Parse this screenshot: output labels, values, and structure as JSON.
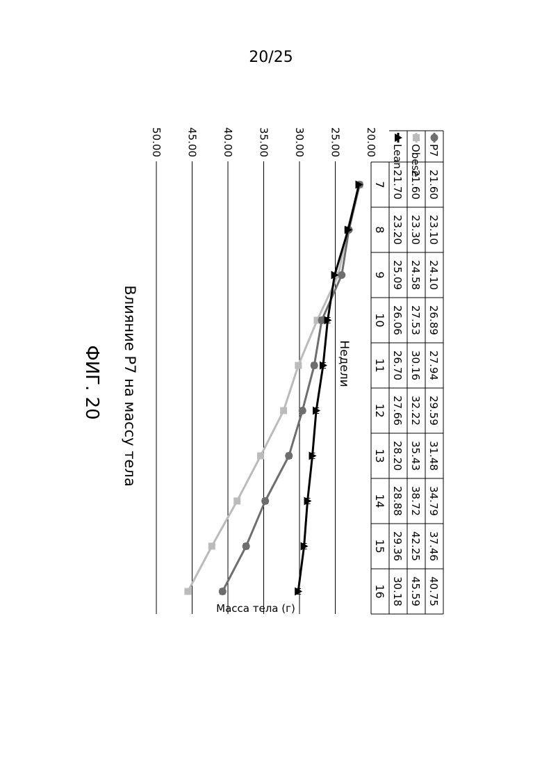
{
  "page": {
    "number": "20/25"
  },
  "figure": {
    "label": "ФИГ. 20"
  },
  "chart_data": {
    "type": "line",
    "title": "Влияние P7 на массу тела",
    "xlabel": "Недели",
    "ylabel": "Масса тела (г)",
    "x": [
      "7",
      "8",
      "9",
      "10",
      "11",
      "12",
      "13",
      "14",
      "15",
      "16"
    ],
    "y_ticks": [
      "20.00",
      "25.00",
      "30.00",
      "35.00",
      "40.00",
      "45.00",
      "50.00"
    ],
    "ylim": [
      20,
      50
    ],
    "grid": true,
    "orientation": "rotated 90 degrees clockwise",
    "series": [
      {
        "name": "Lean",
        "marker": "triangle",
        "color": "#000000",
        "values": [
          "21.70",
          "23.20",
          "25.09",
          "26.06",
          "26.70",
          "27.66",
          "28.20",
          "28.88",
          "29.36",
          "30.18"
        ]
      },
      {
        "name": "Obese",
        "marker": "square",
        "color": "#bbbbbb",
        "values": [
          "21.60",
          "23.30",
          "24.58",
          "27.53",
          "30.16",
          "32.22",
          "35.43",
          "38.72",
          "42.25",
          "45.59"
        ]
      },
      {
        "name": "P7",
        "marker": "circle",
        "color": "#6e6e6e",
        "values": [
          "21.60",
          "23.10",
          "24.10",
          "26.89",
          "27.94",
          "29.59",
          "31.48",
          "34.79",
          "37.46",
          "40.75"
        ]
      }
    ]
  }
}
